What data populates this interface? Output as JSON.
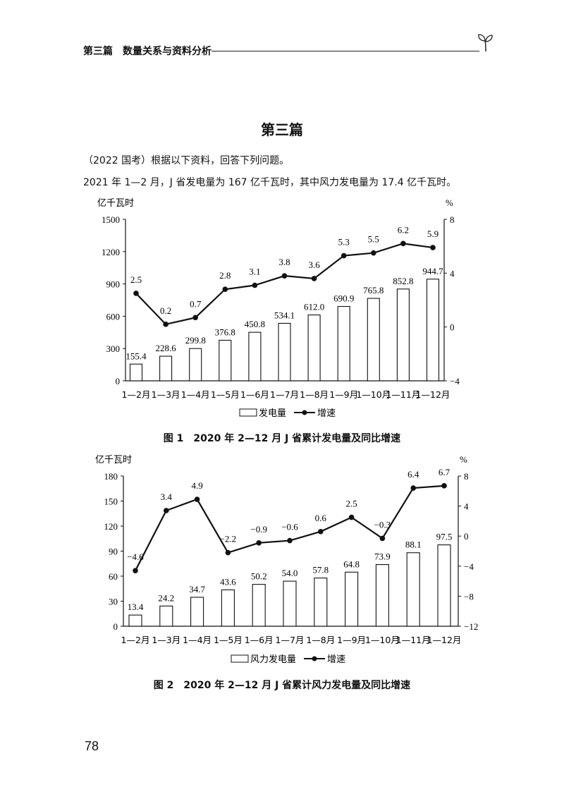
{
  "header": {
    "section": "第三篇",
    "subject": "数量关系与资料分析",
    "icon": "sprout-icon"
  },
  "title": "第三篇",
  "intro": "（2022 国考）根据以下资料，回答下列问题。",
  "statement": "2021 年 1—2 月，J 省发电量为 167 亿千瓦时，其中风力发电量为 17.4 亿千瓦时。",
  "page_number": "78",
  "chart_data": [
    {
      "type": "bar+line",
      "title": "图 1　2020 年 2—12 月 J 省累计发电量及同比增速",
      "ylabel": "亿千瓦时",
      "y2label": "%",
      "ylim": [
        0,
        1500
      ],
      "yticks": [
        0,
        300,
        600,
        900,
        1200,
        1500
      ],
      "y2lim": [
        -4,
        8
      ],
      "y2ticks": [
        -4,
        0,
        4,
        8
      ],
      "categories": [
        "1—2月",
        "1—3月",
        "1—4月",
        "1—5月",
        "1—6月",
        "1—7月",
        "1—8月",
        "1—9月",
        "1—10月",
        "1—11月",
        "1—12月"
      ],
      "series": [
        {
          "name": "发电量",
          "type": "bar",
          "axis": "left",
          "values": [
            155.4,
            228.6,
            299.8,
            376.8,
            450.8,
            534.1,
            612.0,
            690.9,
            765.8,
            852.8,
            944.7
          ],
          "labels": [
            "155.4",
            "228.6",
            "299.8",
            "376.8",
            "450.8",
            "534.1",
            "612.0",
            "690.9",
            "765.8",
            "852.8",
            "944.7"
          ]
        },
        {
          "name": "增速",
          "type": "line",
          "axis": "right",
          "values": [
            2.5,
            0.2,
            0.7,
            2.8,
            3.1,
            3.8,
            3.6,
            5.3,
            5.5,
            6.2,
            5.9
          ],
          "labels": [
            "2.5",
            "0.2",
            "0.7",
            "2.8",
            "3.1",
            "3.8",
            "3.6",
            "5.3",
            "5.5",
            "6.2",
            "5.9"
          ]
        }
      ],
      "legend": "bottom",
      "grid": false,
      "colors": {
        "bar_fill": "#ffffff",
        "stroke": "#111111"
      }
    },
    {
      "type": "bar+line",
      "title": "图 2　2020 年 2—12 月 J 省累计风力发电量及同比增速",
      "ylabel": "亿千瓦时",
      "y2label": "%",
      "ylim": [
        0,
        180
      ],
      "yticks": [
        0,
        30,
        60,
        90,
        120,
        150,
        180
      ],
      "y2lim": [
        -12,
        8
      ],
      "y2ticks": [
        -12,
        -8,
        -4,
        0,
        4,
        8
      ],
      "categories": [
        "1—2月",
        "1—3月",
        "1—4月",
        "1—5月",
        "1—6月",
        "1—7月",
        "1—8月",
        "1—9月",
        "1—10月",
        "1—11月",
        "1—12月"
      ],
      "series": [
        {
          "name": "风力发电量",
          "type": "bar",
          "axis": "left",
          "values": [
            13.4,
            24.2,
            34.7,
            43.6,
            50.2,
            54.0,
            57.8,
            64.8,
            73.9,
            88.1,
            97.5
          ],
          "labels": [
            "13.4",
            "24.2",
            "34.7",
            "43.6",
            "50.2",
            "54.0",
            "57.8",
            "64.8",
            "73.9",
            "88.1",
            "97.5"
          ]
        },
        {
          "name": "增速",
          "type": "line",
          "axis": "right",
          "values": [
            -4.6,
            3.4,
            4.9,
            -2.2,
            -0.9,
            -0.6,
            0.6,
            2.5,
            -0.3,
            6.4,
            6.7
          ],
          "labels": [
            "−4.6",
            "3.4",
            "4.9",
            "−2.2",
            "−0.9",
            "−0.6",
            "0.6",
            "2.5",
            "−0.3",
            "6.4",
            "6.7"
          ]
        }
      ],
      "legend": "bottom",
      "grid": false,
      "colors": {
        "bar_fill": "#ffffff",
        "stroke": "#111111"
      }
    }
  ]
}
